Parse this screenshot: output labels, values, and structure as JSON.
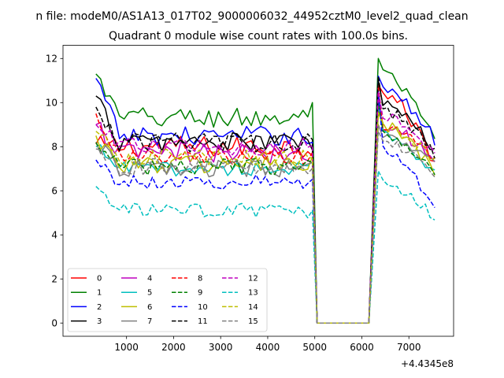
{
  "figure": {
    "suptitle": "n file: modeM0/AS1A13_017T02_9000006032_44952cztM0_level2_quad_clean",
    "title": "Quadrant 0 module wise count rates with 100.0s bins.",
    "offset_label": "+4.4345e8"
  },
  "chart_data": {
    "type": "line",
    "title": "Quadrant 0 module wise count rates with 100.0s bins.",
    "xlabel": "",
    "ylabel": "",
    "x_offset": 443450000,
    "xlim": [
      -350,
      7950
    ],
    "ylim": [
      -0.6,
      12.6
    ],
    "xticks": [
      1000,
      2000,
      3000,
      4000,
      5000,
      6000,
      7000
    ],
    "xtick_labels": [
      "1000",
      "2000",
      "3000",
      "4000",
      "5000",
      "6000",
      "7000"
    ],
    "yticks": [
      0,
      2,
      4,
      6,
      8,
      10,
      12
    ],
    "ytick_labels": [
      "0",
      "2",
      "4",
      "6",
      "8",
      "10",
      "12"
    ],
    "grid": false,
    "legend": "lower-left, 4 columns",
    "x_segments": [
      {
        "start": 350,
        "end": 4950,
        "step": 100
      },
      {
        "start": 5050,
        "end": 6150,
        "step": 100
      },
      {
        "start": 6350,
        "end": 7550,
        "step": 100
      }
    ],
    "series": [
      {
        "name": "0",
        "color": "#ff0000",
        "dash": "solid",
        "level1": 8.0,
        "jitter": 0.45,
        "level2": 10.6,
        "end": 7.3,
        "peak": 10.8
      },
      {
        "name": "1",
        "color": "#008000",
        "dash": "solid",
        "level1": 9.3,
        "jitter": 0.45,
        "level2": 11.3,
        "end": 8.3,
        "peak": 12.0,
        "start": 11.3,
        "last_seg1": 10.0
      },
      {
        "name": "2",
        "color": "#0000ff",
        "dash": "solid",
        "level1": 8.5,
        "jitter": 0.4,
        "level2": 10.7,
        "end": 8.3,
        "peak": 11.2,
        "start": 11.1
      },
      {
        "name": "3",
        "color": "#000000",
        "dash": "solid",
        "level1": 8.2,
        "jitter": 0.4,
        "level2": 10.0,
        "end": 7.8,
        "peak": 11.0,
        "start": 10.3
      },
      {
        "name": "4",
        "color": "#bf00bf",
        "dash": "solid",
        "level1": 7.7,
        "jitter": 0.45,
        "level2": 9.0,
        "end": 7.5,
        "peak": 10.3,
        "start": 9.0
      },
      {
        "name": "5",
        "color": "#00bfbf",
        "dash": "solid",
        "level1": 7.0,
        "jitter": 0.3,
        "level2": 8.6,
        "end": 6.8,
        "peak": 10.0,
        "start": 8.0
      },
      {
        "name": "6",
        "color": "#bfbf00",
        "dash": "solid",
        "level1": 7.2,
        "jitter": 0.4,
        "level2": 9.0,
        "end": 6.8,
        "peak": 9.6,
        "start": 8.5
      },
      {
        "name": "7",
        "color": "#808080",
        "dash": "solid",
        "level1": 7.0,
        "jitter": 0.35,
        "level2": 8.5,
        "end": 7.1,
        "peak": 9.0,
        "start": 8.2
      },
      {
        "name": "8",
        "color": "#ff0000",
        "dash": "dashed",
        "level1": 7.5,
        "jitter": 0.35,
        "level2": 9.0,
        "end": 7.5,
        "peak": 10.8,
        "start": 9.5
      },
      {
        "name": "9",
        "color": "#008000",
        "dash": "dashed",
        "level1": 7.1,
        "jitter": 0.35,
        "level2": 8.5,
        "end": 7.0,
        "peak": 10.0,
        "start": 8.2
      },
      {
        "name": "10",
        "color": "#0000ff",
        "dash": "dashed",
        "level1": 6.4,
        "jitter": 0.3,
        "level2": 8.0,
        "end": 5.2,
        "peak": 10.5,
        "start": 7.4
      },
      {
        "name": "11",
        "color": "#000000",
        "dash": "dashed",
        "level1": 8.2,
        "jitter": 0.4,
        "level2": 9.8,
        "end": 7.7,
        "peak": 11.2,
        "start": 9.8
      },
      {
        "name": "12",
        "color": "#bf00bf",
        "dash": "dashed",
        "level1": 8.0,
        "jitter": 0.35,
        "level2": 9.5,
        "end": 7.6,
        "peak": 10.5,
        "start": 9.0
      },
      {
        "name": "13",
        "color": "#00bfbf",
        "dash": "dashed",
        "level1": 5.1,
        "jitter": 0.3,
        "level2": 6.3,
        "end": 4.8,
        "peak": 6.9,
        "start": 6.2
      },
      {
        "name": "14",
        "color": "#bfbf00",
        "dash": "dashed",
        "level1": 7.5,
        "jitter": 0.35,
        "level2": 9.0,
        "end": 7.3,
        "peak": 9.5,
        "start": 8.7
      },
      {
        "name": "15",
        "color": "#808080",
        "dash": "dashed",
        "level1": 7.1,
        "jitter": 0.35,
        "level2": 8.3,
        "end": 6.7,
        "peak": 8.7,
        "start": 7.9
      }
    ]
  }
}
